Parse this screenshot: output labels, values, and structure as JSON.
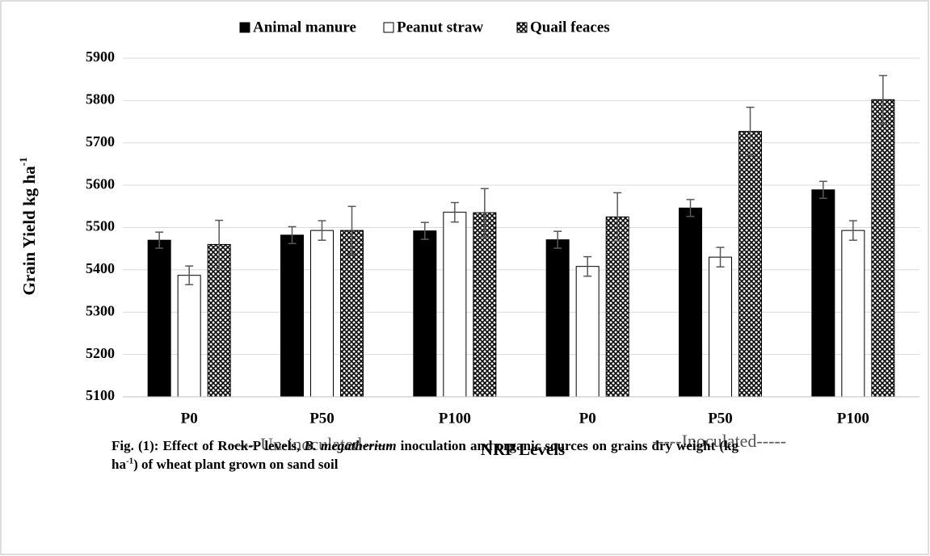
{
  "chart_data": {
    "type": "bar",
    "legend": "top",
    "categories": [
      "P0",
      "P50",
      "P100",
      "P0",
      "P50",
      "P100"
    ],
    "series": [
      {
        "name": "Animal manure",
        "color": "#000000",
        "pattern": "solid",
        "values": [
          5470,
          5482,
          5492,
          5471,
          5546,
          5589
        ],
        "errors": [
          19,
          20,
          20,
          20,
          20,
          20
        ]
      },
      {
        "name": "Peanut straw",
        "color": "#ffffff",
        "pattern": "solid",
        "values": [
          5387,
          5493,
          5536,
          5408,
          5430,
          5493
        ],
        "errors": [
          22,
          23,
          23,
          23,
          23,
          23
        ]
      },
      {
        "name": "Quail feaces",
        "color": "#000000",
        "pattern": "crosshatch",
        "values": [
          5460,
          5493,
          5535,
          5525,
          5727,
          5802
        ],
        "errors": [
          57,
          57,
          57,
          57,
          57,
          57
        ]
      }
    ],
    "ylim": [
      5100,
      5900
    ],
    "yticks": [
      5100,
      5200,
      5300,
      5400,
      5500,
      5600,
      5700,
      5800,
      5900
    ],
    "grid": true,
    "ylabel": [
      "Grain Yield kg ha",
      "-1"
    ],
    "xlabel": "NRP Levels",
    "annotations": [
      "-----Un-inoculated-----",
      "-----Inoculated-----"
    ],
    "caption": [
      "Fig. (1): Effect of Rock-P levels, ",
      "B. megatherium",
      " inoculation and organic sources on grains dry weight (kg ha",
      "-1",
      ") of wheat plant grown on sand soil"
    ]
  }
}
